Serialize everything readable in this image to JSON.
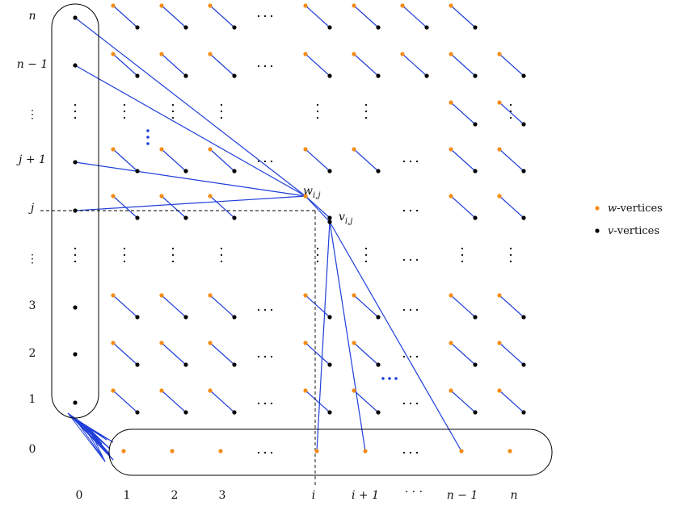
{
  "colors": {
    "w_vertex": "#f28c16",
    "v_vertex": "#000000",
    "edge": "#1f3fd9",
    "outline": "#000000"
  },
  "x_axis": {
    "ticks": [
      "0",
      "1",
      "2",
      "3",
      "i",
      "i + 1",
      "n − 1",
      "n"
    ],
    "zero_row_label": "0"
  },
  "y_axis": {
    "ticks": [
      "1",
      "2",
      "3",
      "j",
      "j + 1",
      "n − 1",
      "n"
    ]
  },
  "axis_ellipsis": {
    "dots": "· · ·",
    "vdots": "⋮"
  },
  "vertex_labels": {
    "w": "w",
    "w_sub": "i,j",
    "v": "v",
    "v_sub": "i,j"
  },
  "legend": [
    {
      "prefix": "w",
      "suffix": "-vertices",
      "color": "#f28c16"
    },
    {
      "prefix": "v",
      "suffix": "-vertices",
      "color": "#000000"
    }
  ]
}
